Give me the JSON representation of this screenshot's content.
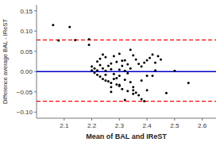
{
  "chart_data": {
    "type": "scatter",
    "xlabel": "Mean of BAL and IReST",
    "ylabel": "Difference average BAL - IReST",
    "xlim": [
      2.0,
      2.65
    ],
    "ylim": [
      -0.115,
      0.165
    ],
    "xticks": [
      2.1,
      2.2,
      2.3,
      2.4,
      2.5,
      2.6
    ],
    "yticks": [
      {
        "value": -0.1,
        "label": "−0.10"
      },
      {
        "value": -0.05,
        "label": "−0.05"
      },
      {
        "value": 0.0,
        "label": "0.00"
      },
      {
        "value": 0.05,
        "label": "0.05"
      },
      {
        "value": 0.1,
        "label": "0.10"
      },
      {
        "value": 0.15,
        "label": "0.15"
      }
    ],
    "grid": false,
    "color": "#000000",
    "hlines": [
      {
        "y": 0.0,
        "color": "#0000cc",
        "line_style": "solid"
      },
      {
        "y": 0.078,
        "color": "#ff0000",
        "line_style": "dashed"
      },
      {
        "y": -0.073,
        "color": "#ff0000",
        "line_style": "dashed"
      }
    ],
    "x": [
      2.06,
      2.08,
      2.12,
      2.14,
      2.19,
      2.19,
      2.2,
      2.2,
      2.21,
      2.21,
      2.22,
      2.22,
      2.22,
      2.23,
      2.23,
      2.23,
      2.24,
      2.24,
      2.24,
      2.25,
      2.25,
      2.25,
      2.26,
      2.26,
      2.27,
      2.27,
      2.27,
      2.27,
      2.28,
      2.28,
      2.28,
      2.29,
      2.29,
      2.29,
      2.3,
      2.3,
      2.3,
      2.3,
      2.31,
      2.31,
      2.31,
      2.32,
      2.32,
      2.32,
      2.33,
      2.33,
      2.33,
      2.34,
      2.34,
      2.34,
      2.35,
      2.35,
      2.35,
      2.36,
      2.36,
      2.37,
      2.37,
      2.38,
      2.38,
      2.39,
      2.39,
      2.4,
      2.4,
      2.41,
      2.42,
      2.42,
      2.43,
      2.44,
      2.45,
      2.47,
      2.5,
      2.55,
      2.25,
      2.27,
      2.3,
      2.32,
      2.35,
      2.38,
      2.4,
      2.43
    ],
    "values": [
      0.115,
      0.077,
      0.11,
      0.078,
      0.08,
      0.066,
      0.013,
      0.003,
      0.008,
      -0.003,
      0.003,
      -0.008,
      0.025,
      0.016,
      -0.012,
      0.032,
      0.042,
      0.008,
      -0.018,
      0.036,
      0.002,
      -0.022,
      0.014,
      -0.024,
      0.02,
      0.006,
      -0.028,
      -0.038,
      0.038,
      -0.006,
      -0.018,
      0.024,
      -0.016,
      -0.032,
      0.005,
      -0.01,
      0.044,
      -0.033,
      0.027,
      -0.043,
      0.014,
      0.002,
      -0.02,
      0.028,
      -0.048,
      -0.004,
      0.018,
      0.054,
      -0.026,
      0.008,
      0.04,
      -0.038,
      -0.055,
      0.03,
      -0.052,
      0.019,
      -0.058,
      0.013,
      -0.068,
      0.022,
      -0.073,
      0.028,
      -0.046,
      0.034,
      0.042,
      -0.01,
      0.022,
      0.038,
      0.03,
      -0.053,
      0.002,
      -0.028,
      -0.008,
      -0.05,
      -0.035,
      -0.07,
      -0.046,
      -0.022,
      -0.01,
      0.003
    ]
  }
}
